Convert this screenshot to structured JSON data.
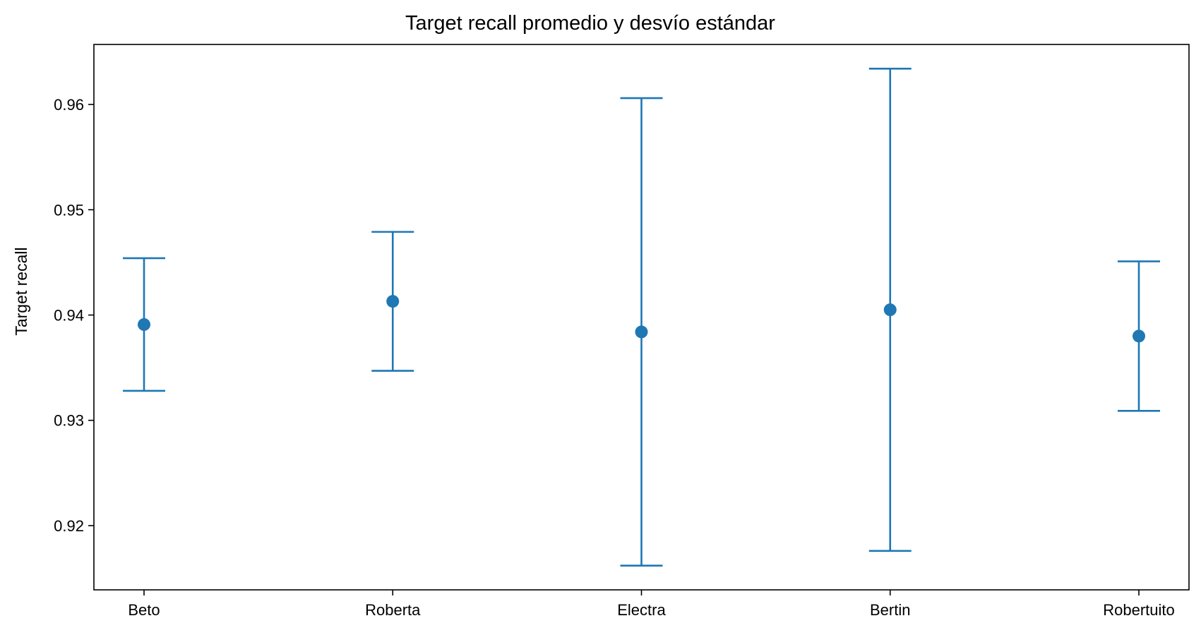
{
  "chart_data": {
    "type": "scatter",
    "title": "Target recall promedio y desvío estándar",
    "xlabel": "",
    "ylabel": "Target recall",
    "categories": [
      "Beto",
      "Roberta",
      "Electra",
      "Bertin",
      "Robertuito"
    ],
    "means": [
      0.9391,
      0.9413,
      0.9384,
      0.9405,
      0.938
    ],
    "std": [
      0.0063,
      0.0066,
      0.0222,
      0.0229,
      0.0071
    ],
    "yticks": [
      "0.92",
      "0.93",
      "0.94",
      "0.95",
      "0.96"
    ],
    "ylim": [
      0.9139,
      0.9657
    ],
    "grid": false,
    "color": "#1f77b4"
  }
}
